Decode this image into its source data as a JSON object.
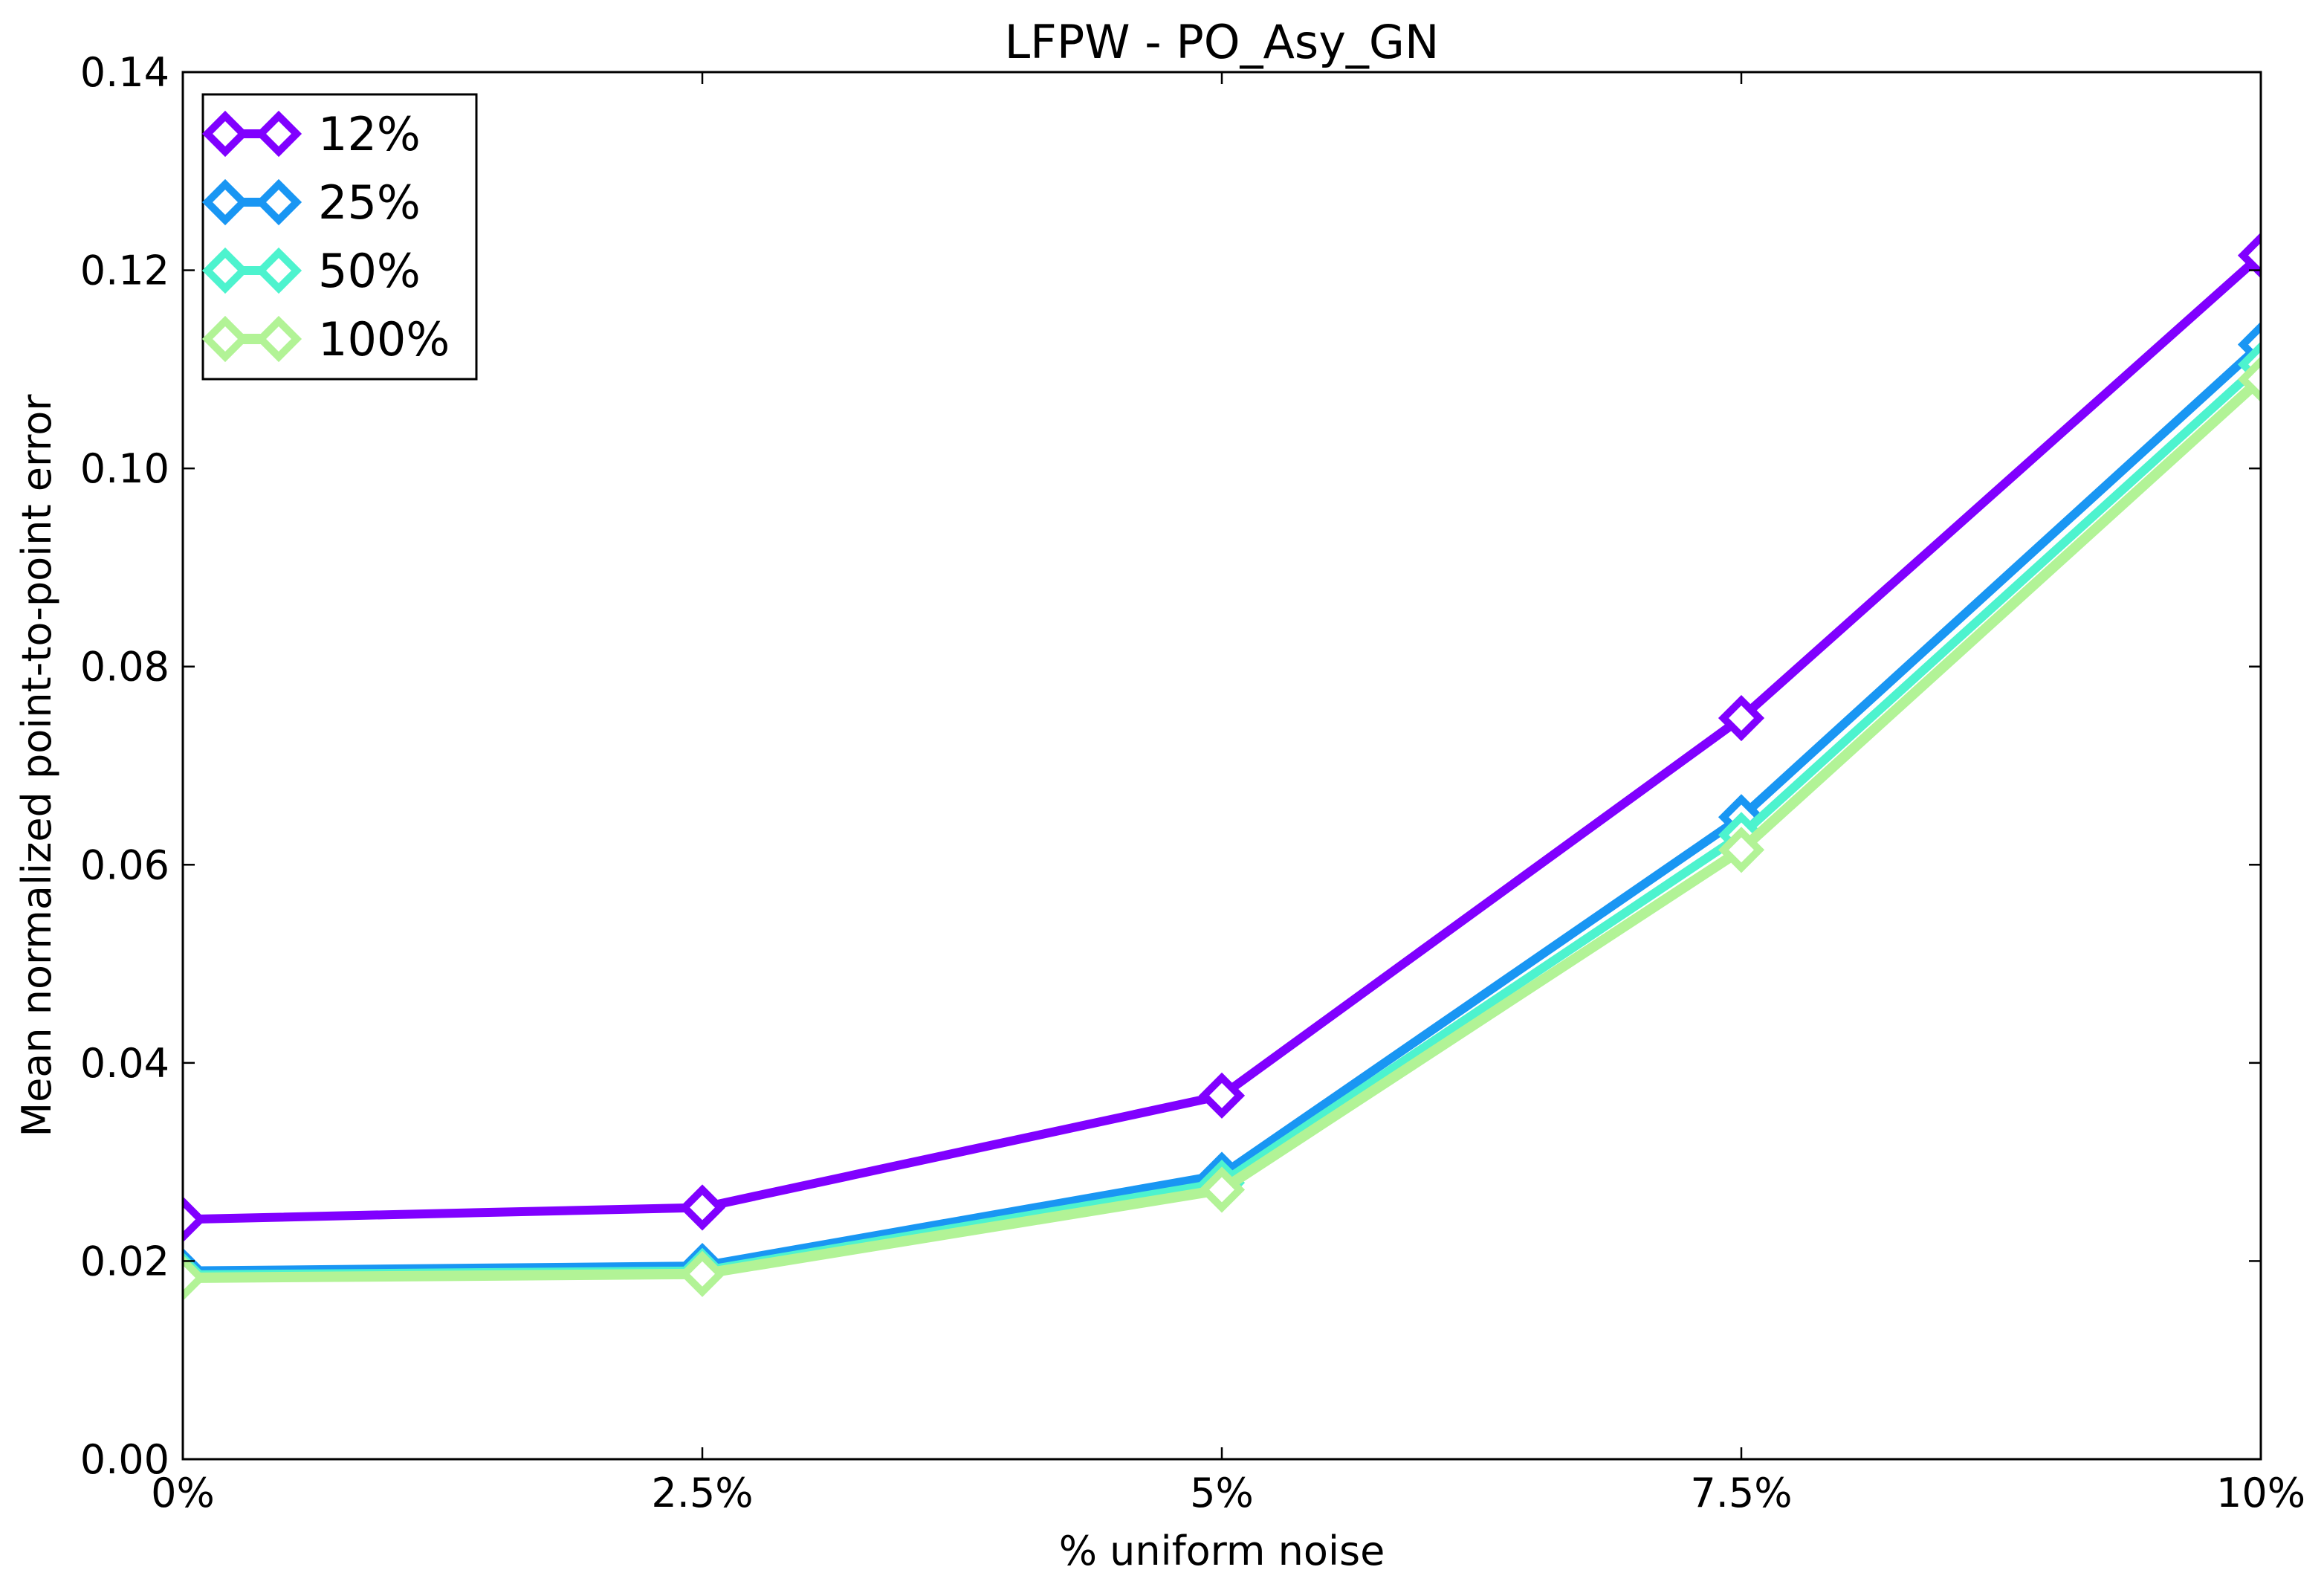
{
  "chart_data": {
    "type": "line",
    "title": "LFPW - PO_Asy_GN",
    "xlabel": "% uniform noise",
    "ylabel": "Mean normalized point-to-point error",
    "x": [
      0,
      2.5,
      5,
      7.5,
      10
    ],
    "x_tick_labels": [
      "0%",
      "2.5%",
      "5%",
      "7.5%",
      "10%"
    ],
    "xlim": [
      0,
      10
    ],
    "ylim": [
      0,
      0.14
    ],
    "y_ticks": [
      0.0,
      0.02,
      0.04,
      0.06,
      0.08,
      0.1,
      0.12,
      0.14
    ],
    "y_tick_labels": [
      "0.00",
      "0.02",
      "0.04",
      "0.06",
      "0.08",
      "0.10",
      "0.12",
      "0.14"
    ],
    "grid": false,
    "legend_position": "top-left",
    "marker": "diamond",
    "series": [
      {
        "name": "12%",
        "color": "#8000ff",
        "values": [
          0.0242,
          0.0254,
          0.0367,
          0.0748,
          0.1215
        ]
      },
      {
        "name": "25%",
        "color": "#1996f3",
        "values": [
          0.019,
          0.0195,
          0.0287,
          0.0648,
          0.1125
        ]
      },
      {
        "name": "50%",
        "color": "#4df3ce",
        "values": [
          0.0186,
          0.019,
          0.0279,
          0.063,
          0.1105
        ]
      },
      {
        "name": "100%",
        "color": "#b2f396",
        "values": [
          0.0183,
          0.0187,
          0.0272,
          0.0615,
          0.109
        ]
      }
    ]
  }
}
